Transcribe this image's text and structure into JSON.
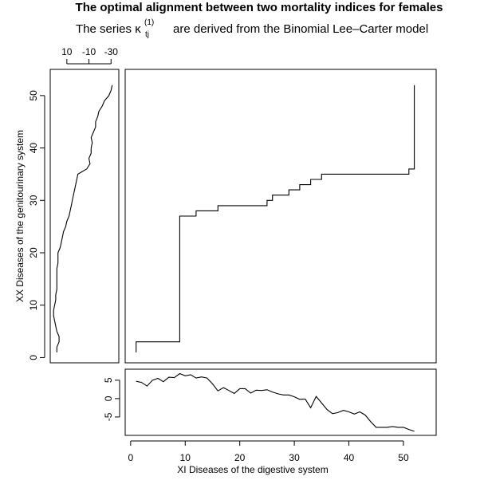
{
  "chart_data": [
    {
      "panel": "main",
      "type": "line",
      "title": "The optimal alignment between two mortality indices for females",
      "subtitle_prefix": "The series κ",
      "subtitle_superscript": "(1)",
      "subtitle_subscript": "tj",
      "subtitle_suffix": "are derived from the Binomial Lee–Carter model",
      "xlabel": "XI Diseases of the digestive system",
      "ylabel": "XX Diseases of the genitourinary system",
      "xlim": [
        -1,
        56
      ],
      "ylim": [
        -1,
        55
      ],
      "xticks": [
        "0",
        "10",
        "20",
        "30",
        "40",
        "50"
      ],
      "yticks": [
        "0",
        "10",
        "20",
        "30",
        "40",
        "50"
      ],
      "x": [
        1,
        1,
        9,
        9,
        12,
        12,
        16,
        16,
        25,
        25,
        26,
        26,
        29,
        29,
        31,
        31,
        33,
        33,
        35,
        35,
        51,
        51,
        52,
        52
      ],
      "y": [
        1,
        3,
        3,
        27,
        27,
        28,
        28,
        29,
        29,
        30,
        30,
        31,
        31,
        32,
        32,
        33,
        33,
        34,
        34,
        35,
        35,
        36,
        36,
        52
      ]
    },
    {
      "panel": "bottom",
      "type": "line",
      "xlim": [
        -1,
        56
      ],
      "ylim": [
        -10,
        8
      ],
      "yticks": [
        "5",
        "0",
        "-5"
      ],
      "x": [
        1,
        2,
        3,
        4,
        5,
        6,
        7,
        8,
        9,
        10,
        11,
        12,
        13,
        14,
        15,
        16,
        17,
        18,
        19,
        20,
        21,
        22,
        23,
        24,
        25,
        26,
        27,
        28,
        29,
        30,
        31,
        32,
        33,
        34,
        35,
        36,
        37,
        38,
        39,
        40,
        41,
        42,
        43,
        44,
        45,
        46,
        47,
        48,
        49,
        50,
        51,
        52
      ],
      "y": [
        4.7,
        4.4,
        3.4,
        5,
        5.5,
        4.6,
        5.8,
        5.7,
        6.8,
        6.2,
        6.5,
        5.6,
        5.9,
        5.6,
        4,
        2.1,
        3,
        2.2,
        1.4,
        2.7,
        2.7,
        1.5,
        2.3,
        2.2,
        2.4,
        1.8,
        1.3,
        1,
        1,
        0.5,
        -0.2,
        -0.1,
        -2.5,
        0.6,
        -1.2,
        -3,
        -4.1,
        -3.8,
        -3.2,
        -3.6,
        -4.2,
        -3.6,
        -4.5,
        -6.3,
        -7.8,
        -7.8,
        -7.8,
        -7.6,
        -7.8,
        -7.8,
        -8.4,
        -8.9
      ]
    },
    {
      "panel": "left",
      "type": "line",
      "xlim": [
        25,
        -37
      ],
      "ylim": [
        -1,
        55
      ],
      "xticks": [
        "10",
        "-10",
        "-30"
      ],
      "y": [
        1,
        2,
        3,
        4,
        5,
        6,
        7,
        8,
        9,
        10,
        11,
        12,
        13,
        14,
        15,
        16,
        17,
        18,
        19,
        20,
        21,
        22,
        23,
        24,
        25,
        26,
        27,
        28,
        29,
        30,
        31,
        32,
        33,
        34,
        35,
        36,
        37,
        38,
        39,
        40,
        41,
        42,
        43,
        44,
        45,
        46,
        47,
        48,
        49,
        50,
        51,
        52
      ],
      "x": [
        19,
        19,
        17,
        17,
        19,
        20,
        21,
        22,
        22,
        21,
        20,
        20,
        19,
        19,
        19,
        19,
        19,
        18,
        18,
        18,
        16,
        15,
        14,
        13,
        11,
        10,
        8,
        7,
        6,
        5,
        4,
        3,
        2,
        1,
        0,
        -8,
        -11,
        -10,
        -12,
        -12,
        -13,
        -12,
        -14,
        -16,
        -16,
        -18,
        -19,
        -22,
        -24,
        -28,
        -30,
        -31
      ]
    }
  ]
}
